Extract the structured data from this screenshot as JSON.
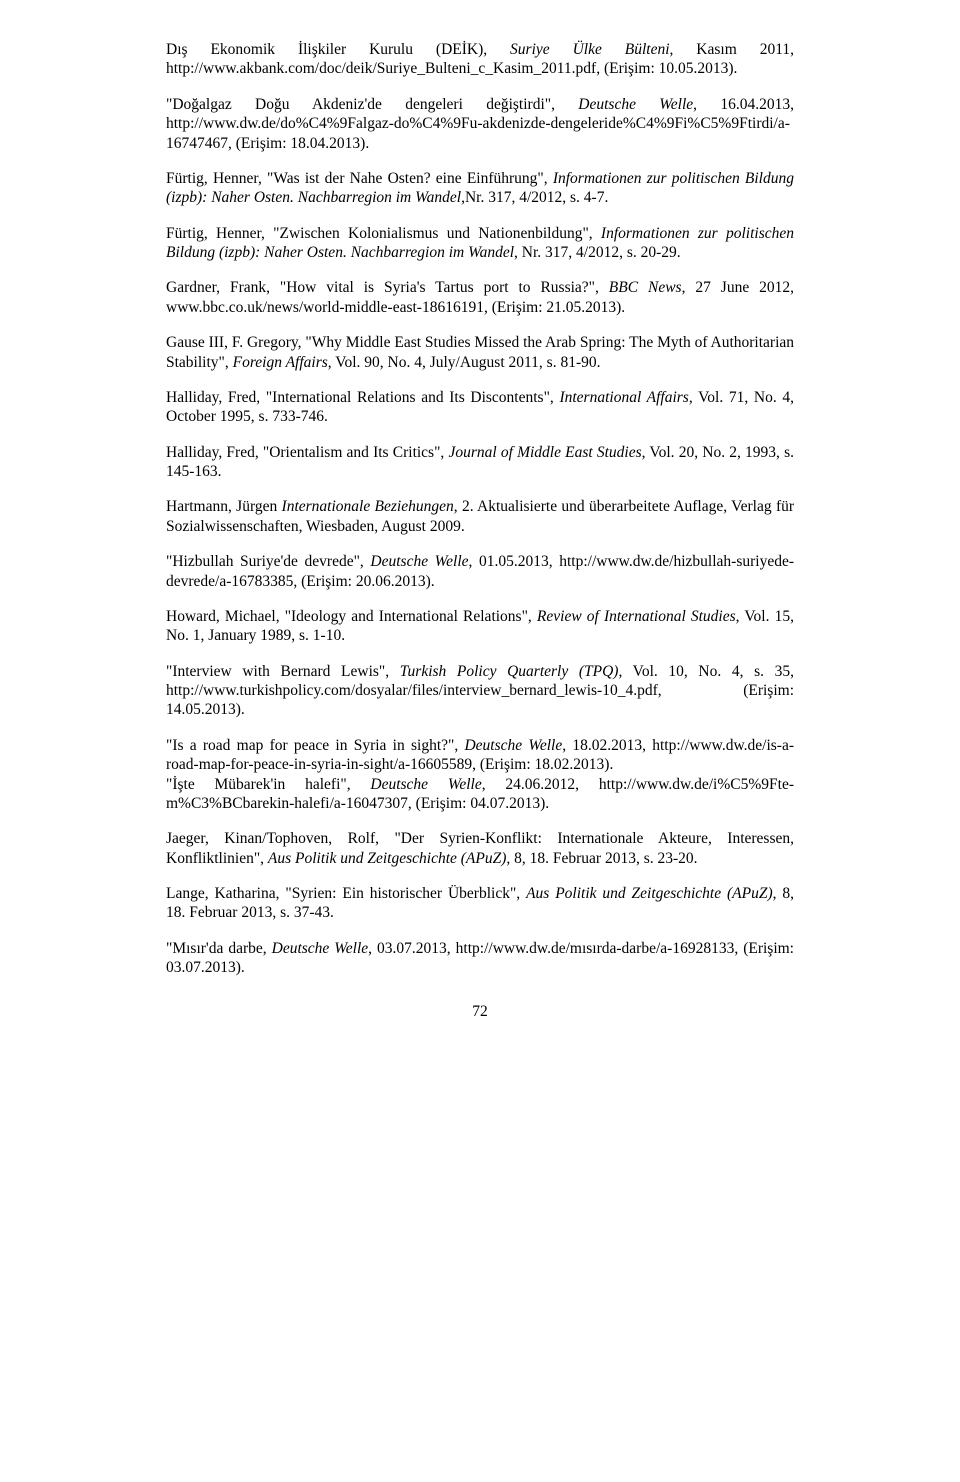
{
  "refs": [
    "Dış Ekonomik İlişkiler Kurulu (DEİK), <em>Suriye Ülke Bülteni</em>, Kasım 2011, http://www.akbank.com/doc/deik/Suriye_Bulteni_c_Kasim_2011.pdf, (Erişim: 10.05.2013).",
    "\"Doğalgaz Doğu Akdeniz'de dengeleri değiştirdi\", <em>Deutsche Welle</em>, 16.04.2013, http://www.dw.de/do%C4%9Falgaz-do%C4%9Fu-akdenizde-dengeleride%C4%9Fi%C5%9Ftirdi/a-16747467, (Erişim: 18.04.2013).",
    "Fürtig, Henner, \"Was ist der Nahe Osten? eine Einführung\", <em>Informationen zur politischen Bildung (izpb): Naher Osten. Nachbarregion im Wandel</em>,Nr. 317, 4/2012, s. 4-7.",
    "Fürtig, Henner, \"Zwischen Kolonialismus und Nationenbildung\", <em>Informationen zur politischen Bildung (izpb): Naher Osten. Nachbarregion im Wandel</em>, Nr. 317, 4/2012, s. 20-29.",
    "Gardner, Frank, \"How vital is Syria's Tartus port to Russia?\", <em>BBC News</em>, 27 June 2012, www.bbc.co.uk/news/world-middle-east-18616191, (Erişim: 21.05.2013).",
    "Gause III, F. Gregory, \"Why Middle East Studies Missed the Arab Spring: The Myth of Authoritarian Stability\", <em>Foreign Affairs</em>, Vol. 90, No. 4, July/August 2011, s. 81-90.",
    "Halliday, Fred, \"International Relations and Its Discontents\", <em>International Affairs</em>, Vol. 71, No. 4, October 1995, s. 733-746.",
    "Halliday, Fred, \"Orientalism and Its Critics\", <em>Journal of Middle East Studies</em>, Vol. 20, No. 2, 1993, s. 145-163.",
    "Hartmann, Jürgen <em>Internationale Beziehungen</em>, 2. Aktualisierte und überarbeitete Auflage, Verlag für Sozialwissenschaften, Wiesbaden, August 2009.",
    "\"Hizbullah Suriye'de devrede\", <em>Deutsche Welle</em>, 01.05.2013, http://www.dw.de/hizbullah-suriyede-devrede/a-16783385, (Erişim: 20.06.2013).",
    "Howard, Michael, \"Ideology and International Relations\", <em>Review of International Studies</em>, Vol. 15, No. 1, January 1989, s. 1-10.",
    "\"Interview with Bernard Lewis\", <em>Turkish Policy Quarterly (TPQ)</em>, Vol. 10, No. 4, s. 35, http://www.turkishpolicy.com/dosyalar/files/interview_bernard_lewis-10_4.pdf, (Erişim: 14.05.2013).",
    "\"Is a road map for peace in Syria in sight?\", <em>Deutsche Welle</em>, 18.02.2013, http://www.dw.de/is-a-road-map-for-peace-in-syria-in-sight/a-16605589, (Erişim: 18.02.2013).<br>\"İşte Mübarek'in halefi\", <em>Deutsche Welle</em>, 24.06.2012, http://www.dw.de/i%C5%9Fte-m%C3%BCbarekin-halefi/a-16047307, (Erişim: 04.07.2013).",
    "Jaeger, Kinan/Tophoven, Rolf, \"Der Syrien-Konflikt: Internationale Akteure, Interessen, Konfliktlinien\", <em>Aus Politik und Zeitgeschichte (APuZ)</em>, 8, 18. Februar 2013, s. 23-20.",
    "Lange, Katharina, \"Syrien: Ein historischer Überblick\", <em>Aus Politik und Zeitgeschichte (APuZ)</em>, 8, 18. Februar 2013, s. 37-43.",
    "\"Mısır'da darbe, <em>Deutsche Welle</em>, 03.07.2013, http://www.dw.de/mısırda-darbe/a-16928133, (Erişim: 03.07.2013)."
  ],
  "page_number": "72"
}
